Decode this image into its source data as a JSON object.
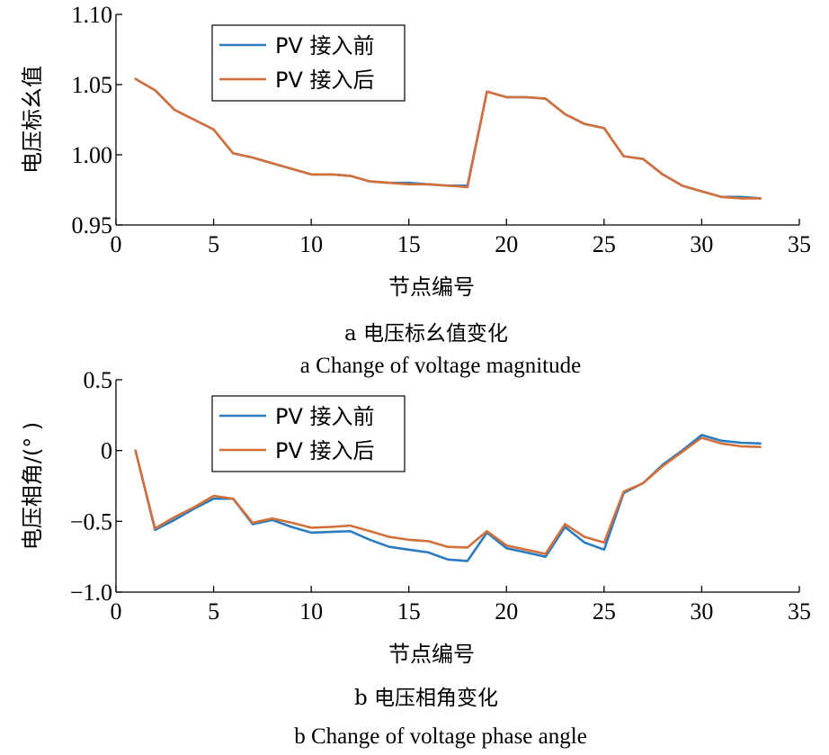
{
  "colors": {
    "before": "#2b7bbf",
    "after": "#d2703c",
    "axis": "#000000"
  },
  "chart_data": [
    {
      "type": "line",
      "caption_cn": "a  电压标幺值变化",
      "caption_en": "a  Change of voltage magnitude",
      "xlabel": "节点编号",
      "ylabel": "电压标幺值",
      "xlim": [
        0,
        35
      ],
      "ylim": [
        0.95,
        1.1
      ],
      "xticks": [
        0,
        5,
        10,
        15,
        20,
        25,
        30,
        35
      ],
      "yticks": [
        0.95,
        1.0,
        1.05,
        1.1
      ],
      "ytick_labels": [
        "0.95",
        "1.00",
        "1.05",
        "1.10"
      ],
      "xtick_labels": [
        "0",
        "5",
        "10",
        "15",
        "20",
        "25",
        "30",
        "35"
      ],
      "legend_position": "top-left",
      "x": [
        1,
        2,
        3,
        4,
        5,
        6,
        7,
        8,
        9,
        10,
        11,
        12,
        13,
        14,
        15,
        16,
        17,
        18,
        19,
        20,
        21,
        22,
        23,
        24,
        25,
        26,
        27,
        28,
        29,
        30,
        31,
        32,
        33
      ],
      "series": [
        {
          "name": "PV 接入前",
          "color_key": "before",
          "values": [
            1.054,
            1.046,
            1.032,
            1.025,
            1.018,
            1.001,
            0.998,
            0.994,
            0.99,
            0.986,
            0.986,
            0.985,
            0.981,
            0.98,
            0.98,
            0.979,
            0.978,
            0.978,
            1.045,
            1.041,
            1.041,
            1.04,
            1.029,
            1.022,
            1.019,
            0.999,
            0.997,
            0.986,
            0.978,
            0.974,
            0.97,
            0.97,
            0.969
          ]
        },
        {
          "name": "PV 接入后",
          "color_key": "after",
          "values": [
            1.054,
            1.046,
            1.032,
            1.025,
            1.018,
            1.001,
            0.998,
            0.994,
            0.99,
            0.986,
            0.986,
            0.985,
            0.981,
            0.98,
            0.979,
            0.979,
            0.978,
            0.977,
            1.045,
            1.041,
            1.041,
            1.04,
            1.029,
            1.022,
            1.019,
            0.999,
            0.997,
            0.986,
            0.978,
            0.974,
            0.97,
            0.969,
            0.969
          ]
        }
      ]
    },
    {
      "type": "line",
      "caption_cn": "b  电压相角变化",
      "caption_en": "b  Change of voltage phase angle",
      "xlabel": "节点编号",
      "ylabel": "电压相角/(°  )",
      "xlim": [
        0,
        35
      ],
      "ylim": [
        -1.0,
        0.5
      ],
      "xticks": [
        0,
        5,
        10,
        15,
        20,
        25,
        30,
        35
      ],
      "yticks": [
        -1.0,
        -0.5,
        0,
        0.5
      ],
      "ytick_labels": [
        "−1.0",
        "−0.5",
        "0",
        "0.5"
      ],
      "xtick_labels": [
        "0",
        "5",
        "10",
        "15",
        "20",
        "25",
        "30",
        "35"
      ],
      "legend_position": "top-left",
      "x": [
        1,
        2,
        3,
        4,
        5,
        6,
        7,
        8,
        9,
        10,
        11,
        12,
        13,
        14,
        15,
        16,
        17,
        18,
        19,
        20,
        21,
        22,
        23,
        24,
        25,
        26,
        27,
        28,
        29,
        30,
        31,
        32,
        33
      ],
      "series": [
        {
          "name": "PV 接入前",
          "color_key": "before",
          "values": [
            0.0,
            -0.56,
            -0.49,
            -0.41,
            -0.34,
            -0.34,
            -0.52,
            -0.49,
            -0.54,
            -0.58,
            -0.575,
            -0.57,
            -0.63,
            -0.68,
            -0.7,
            -0.72,
            -0.77,
            -0.78,
            -0.58,
            -0.69,
            -0.72,
            -0.75,
            -0.54,
            -0.65,
            -0.7,
            -0.3,
            -0.23,
            -0.1,
            0.0,
            0.11,
            0.07,
            0.055,
            0.05
          ]
        },
        {
          "name": "PV 接入后",
          "color_key": "after",
          "values": [
            0.0,
            -0.55,
            -0.47,
            -0.4,
            -0.32,
            -0.34,
            -0.51,
            -0.48,
            -0.51,
            -0.545,
            -0.54,
            -0.53,
            -0.57,
            -0.61,
            -0.63,
            -0.64,
            -0.68,
            -0.685,
            -0.57,
            -0.67,
            -0.7,
            -0.73,
            -0.52,
            -0.61,
            -0.65,
            -0.29,
            -0.23,
            -0.11,
            -0.01,
            0.09,
            0.05,
            0.03,
            0.025
          ]
        }
      ]
    }
  ]
}
